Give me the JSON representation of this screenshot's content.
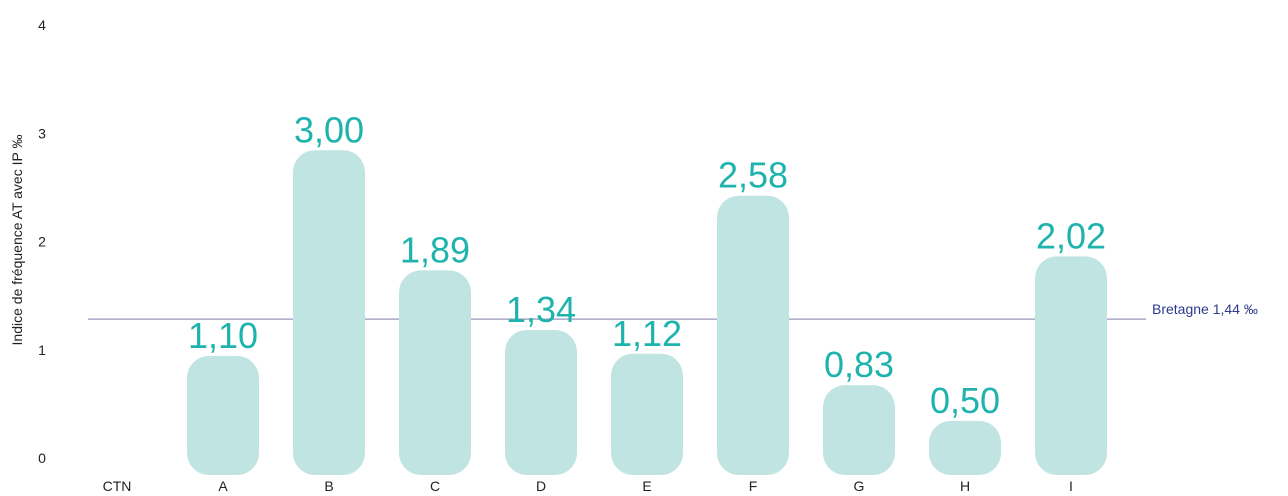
{
  "chart_data": {
    "type": "bar",
    "y_label": "Indice de fréquence AT avec IP ‰",
    "categories": [
      "CTN",
      "A",
      "B",
      "C",
      "D",
      "E",
      "F",
      "G",
      "H",
      "I"
    ],
    "values": [
      null,
      1.1,
      3.0,
      1.89,
      1.34,
      1.12,
      2.58,
      0.83,
      0.5,
      2.02
    ],
    "value_labels": [
      null,
      "1,10",
      "3,00",
      "1,89",
      "1,34",
      "1,12",
      "2,58",
      "0,83",
      "0,50",
      "2,02"
    ],
    "color": "#c0e4e1",
    "ylim": [
      0,
      4
    ],
    "yticks": [
      0,
      1,
      2,
      3,
      4
    ],
    "reference_line": {
      "value": 1.44,
      "label": "Bretagne 1,44 ‰",
      "color": "#a9a6c6"
    }
  }
}
